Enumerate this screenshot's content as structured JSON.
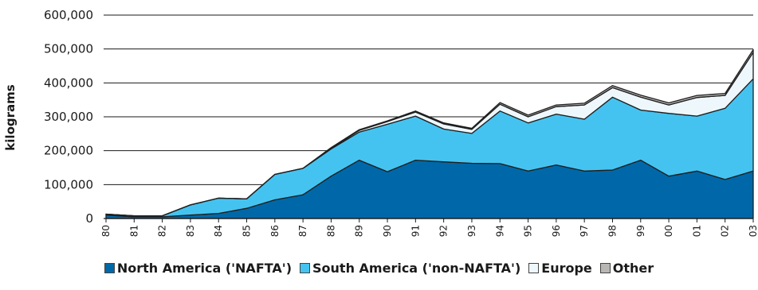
{
  "chart_data": {
    "type": "area",
    "stacked": true,
    "ylabel": "kilograms",
    "xlabel": "",
    "title": "",
    "ylim": [
      0,
      600000
    ],
    "yticks": [
      0,
      100000,
      200000,
      300000,
      400000,
      500000,
      600000
    ],
    "ytick_labels": [
      "0",
      "100,000",
      "200,000",
      "300,000",
      "400,000",
      "500,000",
      "600,000"
    ],
    "categories": [
      "80",
      "81",
      "82",
      "83",
      "84",
      "85",
      "86",
      "87",
      "88",
      "89",
      "90",
      "91",
      "92",
      "93",
      "94",
      "95",
      "96",
      "97",
      "98",
      "99",
      "00",
      "01",
      "02",
      "03"
    ],
    "grid": "horizontal",
    "legend_position": "bottom",
    "series": [
      {
        "name": "North America ('NAFTA')",
        "color": "#0068a8",
        "values": [
          10000,
          5000,
          5000,
          10000,
          15000,
          30000,
          55000,
          70000,
          125000,
          172000,
          138000,
          172000,
          167000,
          163000,
          162000,
          140000,
          158000,
          140000,
          143000,
          172000,
          125000,
          140000,
          115000,
          140000
        ]
      },
      {
        "name": "South America ('non-NAFTA')",
        "color": "#45c3f0",
        "values": [
          3000,
          3000,
          3000,
          30000,
          45000,
          28000,
          75000,
          78000,
          80000,
          83000,
          140000,
          130000,
          97000,
          88000,
          155000,
          142000,
          150000,
          153000,
          215000,
          148000,
          185000,
          162000,
          210000,
          272000
        ]
      },
      {
        "name": "Europe",
        "color": "#eef7fc",
        "values": [
          0,
          0,
          0,
          0,
          0,
          0,
          0,
          0,
          2000,
          5000,
          8000,
          12000,
          15000,
          12000,
          20000,
          18000,
          22000,
          42000,
          28000,
          38000,
          25000,
          55000,
          38000,
          78000
        ]
      },
      {
        "name": "Other",
        "color": "#b9b7b4",
        "values": [
          0,
          0,
          0,
          0,
          0,
          0,
          0,
          0,
          2000,
          2000,
          2000,
          3000,
          3000,
          3000,
          5000,
          5000,
          5000,
          5000,
          6000,
          6000,
          6000,
          6000,
          6000,
          8000
        ]
      }
    ]
  }
}
